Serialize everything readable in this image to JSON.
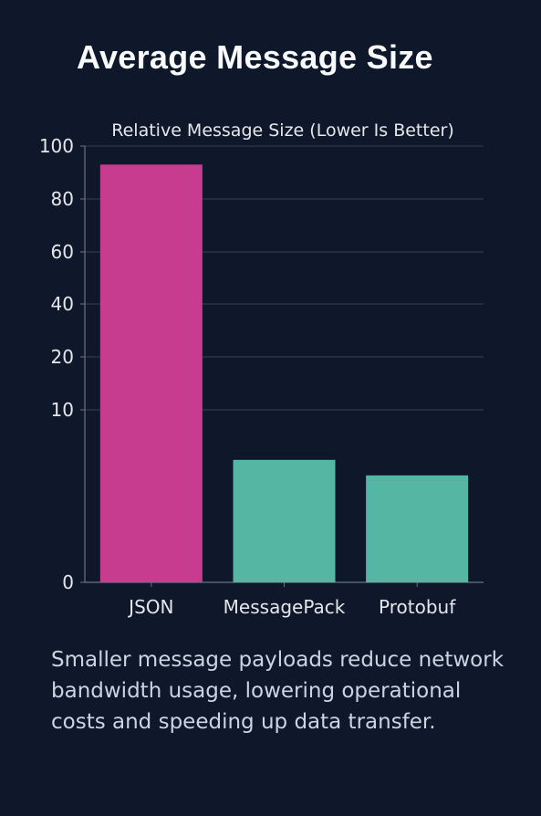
{
  "page": {
    "title": "Average Message Size",
    "description": "Smaller message payloads reduce network bandwidth usage, lowering operational costs and speeding up data transfer."
  },
  "colors": {
    "background": "#0f172a",
    "grid": "#334155",
    "axis": "#64748b",
    "text": "#e5e7eb",
    "json_bar": "#c73c8f",
    "other_bar": "#56b6a4"
  },
  "chart_data": {
    "type": "bar",
    "title": "Relative Message Size (Lower Is Better)",
    "categories": [
      "JSON",
      "MessagePack",
      "Protobuf"
    ],
    "values": [
      93,
      7.1,
      6.2
    ],
    "bar_colors": [
      "#c73c8f",
      "#56b6a4",
      "#56b6a4"
    ],
    "ylim": [
      0,
      100
    ],
    "yticks": [
      0,
      10,
      20,
      40,
      60,
      80,
      100
    ],
    "grid": true,
    "legend": "none"
  }
}
